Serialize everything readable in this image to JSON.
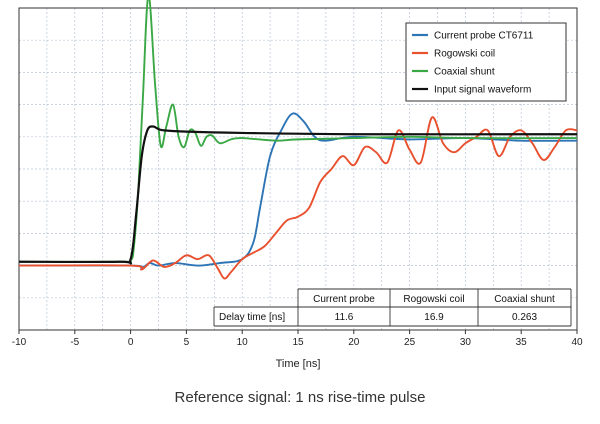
{
  "caption": "Reference signal: 1 ns rise-time pulse",
  "chart_data": {
    "type": "line",
    "title": "",
    "xlabel": "Time [ns]",
    "ylabel": "",
    "xlim": [
      -10,
      40
    ],
    "ylim": [
      -0.5,
      2.0
    ],
    "xticks": [
      -10,
      -5,
      0,
      5,
      10,
      15,
      20,
      25,
      30,
      35,
      40
    ],
    "grid": true,
    "legend_position": "top-right",
    "series": [
      {
        "name": "Current probe CT6711",
        "color": "#2e75b6",
        "points": [
          [
            -10,
            0
          ],
          [
            0,
            0
          ],
          [
            1,
            -0.02
          ],
          [
            1.7,
            0.02
          ],
          [
            2.5,
            0
          ],
          [
            4,
            0.02
          ],
          [
            6,
            0
          ],
          [
            8,
            0.02
          ],
          [
            10,
            0.05
          ],
          [
            11,
            0.18
          ],
          [
            11.6,
            0.45
          ],
          [
            12.5,
            0.85
          ],
          [
            13.5,
            1.05
          ],
          [
            14.5,
            1.18
          ],
          [
            15.5,
            1.12
          ],
          [
            16.5,
            1.0
          ],
          [
            17.5,
            0.97
          ],
          [
            20,
            1.0
          ],
          [
            25,
            0.98
          ],
          [
            30,
            0.99
          ],
          [
            35,
            0.97
          ],
          [
            40,
            0.97
          ]
        ]
      },
      {
        "name": "Rogowski coil",
        "color": "#e8502e",
        "points": [
          [
            -10,
            0
          ],
          [
            0,
            0
          ],
          [
            1,
            -0.03
          ],
          [
            2,
            0.04
          ],
          [
            3,
            -0.01
          ],
          [
            4,
            0.02
          ],
          [
            5,
            0.08
          ],
          [
            6,
            0.05
          ],
          [
            7,
            0.08
          ],
          [
            7.8,
            -0.02
          ],
          [
            8.4,
            -0.1
          ],
          [
            9,
            -0.05
          ],
          [
            10,
            0.05
          ],
          [
            11,
            0.1
          ],
          [
            12,
            0.15
          ],
          [
            13,
            0.25
          ],
          [
            14,
            0.35
          ],
          [
            15,
            0.38
          ],
          [
            16,
            0.45
          ],
          [
            17,
            0.65
          ],
          [
            18,
            0.75
          ],
          [
            19,
            0.85
          ],
          [
            20,
            0.78
          ],
          [
            21,
            0.92
          ],
          [
            22,
            0.88
          ],
          [
            23,
            0.8
          ],
          [
            24,
            1.05
          ],
          [
            25,
            0.9
          ],
          [
            26,
            0.8
          ],
          [
            27,
            1.15
          ],
          [
            28,
            0.95
          ],
          [
            29,
            0.88
          ],
          [
            30,
            0.95
          ],
          [
            31,
            1.0
          ],
          [
            32,
            1.05
          ],
          [
            33,
            0.85
          ],
          [
            34,
            1.0
          ],
          [
            35,
            1.05
          ],
          [
            36,
            0.95
          ],
          [
            37,
            0.82
          ],
          [
            38,
            0.92
          ],
          [
            39,
            1.05
          ],
          [
            40,
            1.05
          ]
        ]
      },
      {
        "name": "Coaxial shunt",
        "color": "#3aa845",
        "points": [
          [
            -10,
            0.03
          ],
          [
            -1,
            0.03
          ],
          [
            0,
            0.04
          ],
          [
            0.3,
            0.15
          ],
          [
            0.7,
            0.6
          ],
          [
            1.1,
            1.3
          ],
          [
            1.6,
            2.1
          ],
          [
            2.2,
            1.4
          ],
          [
            2.7,
            0.93
          ],
          [
            3.2,
            1.08
          ],
          [
            3.8,
            1.25
          ],
          [
            4.3,
            1.0
          ],
          [
            4.8,
            0.92
          ],
          [
            5.3,
            1.05
          ],
          [
            5.8,
            1.03
          ],
          [
            6.3,
            0.93
          ],
          [
            6.8,
            1.0
          ],
          [
            7.3,
            1.01
          ],
          [
            8,
            0.95
          ],
          [
            9,
            0.98
          ],
          [
            10,
            0.99
          ],
          [
            13,
            0.97
          ],
          [
            15,
            0.98
          ],
          [
            20,
            0.99
          ],
          [
            25,
            1.0
          ],
          [
            30,
            0.99
          ],
          [
            40,
            0.99
          ]
        ]
      },
      {
        "name": "Input signal waveform",
        "color": "#111111",
        "points": [
          [
            -10,
            0.03
          ],
          [
            -1,
            0.03
          ],
          [
            0,
            0.05
          ],
          [
            0.5,
            0.4
          ],
          [
            1,
            0.85
          ],
          [
            1.5,
            1.05
          ],
          [
            2,
            1.08
          ],
          [
            2.5,
            1.06
          ],
          [
            3,
            1.05
          ],
          [
            5,
            1.04
          ],
          [
            10,
            1.03
          ],
          [
            20,
            1.02
          ],
          [
            40,
            1.02
          ]
        ]
      }
    ],
    "table": {
      "headers": [
        "",
        "Current probe",
        "Rogowski coil",
        "Coaxial shunt"
      ],
      "rows": [
        [
          "Delay time [ns]",
          "11.6",
          "16.9",
          "0.263"
        ]
      ]
    }
  }
}
